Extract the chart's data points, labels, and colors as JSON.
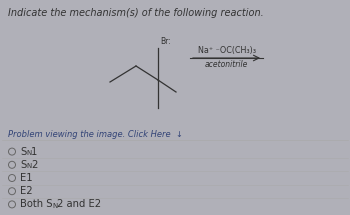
{
  "title": "Indicate the mechanism(s) of the following reaction.",
  "title_fontsize": 7.0,
  "bg_color": "#b0b0b8",
  "panel_color": "#d4d4d4",
  "problem_text": "Problem viewing the image. Click Here  ↓",
  "reagent_top": "Na⁺ ⁻OC(CH₃)₃",
  "reagent_bot": "acetonitrile",
  "br_label": "Br:",
  "options_raw": [
    "SN1",
    "SN2",
    "E1",
    "E2",
    "Both SN2 and E2"
  ],
  "option_fontsize": 7.2,
  "divider_color": "#aaaaaa",
  "circle_color": "#666666",
  "text_color": "#333333",
  "line_color": "#333333"
}
